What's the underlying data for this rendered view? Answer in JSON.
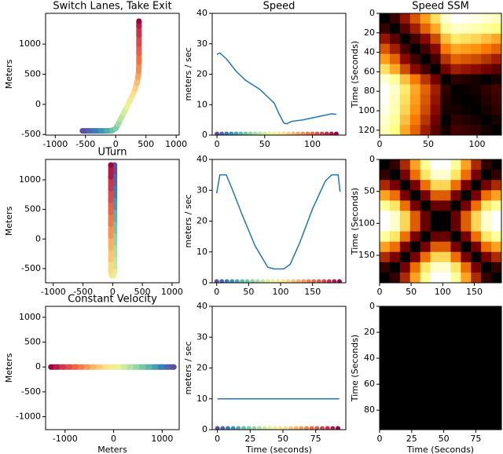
{
  "chart_data": [
    {
      "type": "scatter",
      "title": "Switch Lanes, Take Exit",
      "ylabel": "Meters",
      "x": [
        -550,
        -450,
        -350,
        -250,
        -150,
        -60,
        0,
        40,
        80,
        130,
        180,
        230,
        280,
        320,
        350,
        370,
        380,
        385,
        385,
        385,
        385,
        385,
        385
      ],
      "y": [
        -440,
        -440,
        -440,
        -440,
        -440,
        -435,
        -400,
        -330,
        -250,
        -150,
        -50,
        50,
        150,
        250,
        350,
        450,
        550,
        700,
        850,
        1000,
        1150,
        1300,
        1380
      ],
      "colormap": [
        "#5e4fa2",
        "#3288bd",
        "#66c2a5",
        "#abdda4",
        "#e6f598",
        "#fee08b",
        "#fdae61",
        "#f46d43",
        "#d53e4f",
        "#9e0142"
      ],
      "xlim": [
        -1160,
        1050
      ],
      "ylim": [
        -510,
        1510
      ],
      "xticks": [
        -1000,
        -500,
        0,
        500,
        1000
      ],
      "yticks": [
        -500,
        0,
        500,
        1000
      ]
    },
    {
      "type": "line",
      "title": "Speed",
      "ylabel": "meters / sec",
      "color": "#1f77b4",
      "x": [
        0,
        3,
        10,
        20,
        30,
        45,
        55,
        60,
        65,
        70,
        73,
        78,
        90,
        105,
        120,
        125
      ],
      "values": [
        26.5,
        27,
        25,
        21,
        18,
        15,
        12,
        10.5,
        7,
        4,
        3.7,
        4.5,
        5,
        6,
        7,
        6.8
      ],
      "markers": {
        "x": [
          0,
          5,
          10,
          15,
          20,
          25,
          30,
          35,
          40,
          45,
          50,
          55,
          60,
          65,
          70,
          75,
          80,
          85,
          90,
          95,
          100,
          105,
          110,
          115,
          120,
          125
        ],
        "y": [
          0.4,
          0.4,
          0.4,
          0.4,
          0.4,
          0.4,
          0.4,
          0.4,
          0.4,
          0.4,
          0.4,
          0.4,
          0.4,
          0.4,
          0.4,
          0.4,
          0.4,
          0.4,
          0.4,
          0.4,
          0.4,
          0.4,
          0.4,
          0.4,
          0.4,
          0.4
        ]
      },
      "colormap": [
        "#5e4fa2",
        "#3288bd",
        "#66c2a5",
        "#abdda4",
        "#e6f598",
        "#fee08b",
        "#fdae61",
        "#f46d43",
        "#d53e4f",
        "#9e0142"
      ],
      "xlim": [
        -5,
        135
      ],
      "ylim": [
        0,
        40
      ],
      "xticks": [
        0,
        50,
        100
      ],
      "yticks": [
        0,
        10,
        20,
        30,
        40
      ]
    },
    {
      "type": "heatmap",
      "title": "Speed SSM",
      "ylabel": "Time (Seconds)",
      "y_inverted": true,
      "z": [
        [
          0,
          2.5,
          6.5,
          9.5,
          12.5,
          15.5,
          20.5,
          22.5,
          22,
          21.5,
          20.5,
          19.5
        ],
        [
          2.5,
          0,
          4,
          7,
          10,
          13,
          18,
          20,
          19.5,
          19,
          18,
          17
        ],
        [
          6.5,
          4,
          0,
          3,
          6,
          9,
          14,
          16,
          15.5,
          15,
          14,
          13
        ],
        [
          9.5,
          7,
          3,
          0,
          3,
          6,
          11,
          13,
          12.5,
          12,
          11,
          10
        ],
        [
          12.5,
          10,
          6,
          3,
          0,
          3,
          8,
          10,
          9.5,
          9,
          8,
          7
        ],
        [
          15.5,
          13,
          9,
          6,
          3,
          0,
          5,
          7,
          6.5,
          6,
          5,
          4
        ],
        [
          20.5,
          18,
          14,
          11,
          8,
          5,
          0,
          2,
          1.5,
          1,
          0,
          1
        ],
        [
          22.5,
          20,
          16,
          13,
          10,
          7,
          2,
          0,
          0.5,
          1,
          2,
          3
        ],
        [
          22,
          19.5,
          15.5,
          12.5,
          9.5,
          6.5,
          1.5,
          0.5,
          0,
          0.5,
          1.5,
          2.5
        ],
        [
          21.5,
          19,
          15,
          12,
          9,
          6,
          1,
          1,
          0.5,
          0,
          1,
          2
        ],
        [
          20.5,
          18,
          14,
          11,
          8,
          5,
          0,
          2,
          1.5,
          1,
          0,
          1
        ],
        [
          19.5,
          17,
          13,
          10,
          7,
          4,
          1,
          3,
          2.5,
          2,
          1,
          0
        ]
      ],
      "clim": [
        0,
        22.5
      ],
      "colormap": [
        "#000000",
        "#800000",
        "#ff8000",
        "#ffff80",
        "#ffffff"
      ],
      "xlim": [
        0,
        125
      ],
      "ylim": [
        0,
        125
      ],
      "xticks": [
        0,
        50,
        100
      ],
      "yticks": [
        0,
        20,
        40,
        60,
        80,
        100,
        120
      ]
    },
    {
      "type": "scatter",
      "title": "UTurn",
      "ylabel": "Meters",
      "x": [
        30,
        30,
        30,
        30,
        30,
        30,
        30,
        30,
        30,
        30,
        15,
        -15,
        -30,
        -30,
        -30,
        -30,
        -30,
        -30,
        -30,
        -30,
        -30,
        -30
      ],
      "y": [
        1250,
        1050,
        850,
        650,
        450,
        250,
        50,
        -150,
        -350,
        -550,
        -620,
        -620,
        -550,
        -350,
        -150,
        50,
        250,
        450,
        650,
        850,
        1050,
        1250
      ],
      "colormap": [
        "#5e4fa2",
        "#3288bd",
        "#66c2a5",
        "#abdda4",
        "#e6f598",
        "#fee08b",
        "#fdae61",
        "#f46d43",
        "#d53e4f",
        "#9e0142"
      ],
      "xlim": [
        -1130,
        1120
      ],
      "ylim": [
        -740,
        1345
      ],
      "xticks": [
        -1000,
        -500,
        0,
        500,
        1000
      ],
      "yticks": [
        -500,
        0,
        500,
        1000
      ]
    },
    {
      "type": "line",
      "ylabel": "meters / sec",
      "color": "#1f77b4",
      "x": [
        0,
        5,
        15,
        25,
        40,
        60,
        80,
        90,
        105,
        115,
        130,
        150,
        170,
        180,
        190,
        193
      ],
      "values": [
        29,
        35,
        35,
        30,
        22,
        12,
        5,
        4.5,
        4.5,
        6,
        13,
        24,
        33,
        35,
        35,
        29.5
      ],
      "markers": {
        "x": [
          0,
          8,
          16,
          24,
          32,
          40,
          48,
          56,
          64,
          72,
          80,
          88,
          96,
          104,
          112,
          120,
          128,
          136,
          144,
          152,
          160,
          168,
          176,
          184,
          192
        ],
        "y": [
          0.4,
          0.4,
          0.4,
          0.4,
          0.4,
          0.4,
          0.4,
          0.4,
          0.4,
          0.4,
          0.4,
          0.4,
          0.4,
          0.4,
          0.4,
          0.4,
          0.4,
          0.4,
          0.4,
          0.4,
          0.4,
          0.4,
          0.4,
          0.4,
          0.4
        ]
      },
      "colormap": [
        "#5e4fa2",
        "#3288bd",
        "#66c2a5",
        "#abdda4",
        "#e6f598",
        "#fee08b",
        "#fdae61",
        "#f46d43",
        "#d53e4f",
        "#9e0142"
      ],
      "xlim": [
        -7,
        202
      ],
      "ylim": [
        0,
        40
      ],
      "xticks": [
        0,
        50,
        100,
        150
      ],
      "yticks": [
        0,
        10,
        20,
        30,
        40
      ]
    },
    {
      "type": "heatmap",
      "ylabel": "Time (Seconds)",
      "y_inverted": true,
      "z": [
        [
          0,
          3,
          10,
          17,
          24,
          30,
          30,
          24,
          17,
          10,
          3,
          0
        ],
        [
          3,
          0,
          7,
          14,
          21,
          27,
          27,
          21,
          14,
          7,
          0,
          3
        ],
        [
          10,
          7,
          0,
          7,
          14,
          20,
          20,
          14,
          7,
          0,
          7,
          10
        ],
        [
          17,
          14,
          7,
          0,
          7,
          13,
          13,
          7,
          0,
          7,
          14,
          17
        ],
        [
          24,
          21,
          14,
          7,
          0,
          6,
          6,
          0,
          7,
          14,
          21,
          24
        ],
        [
          30,
          27,
          20,
          13,
          6,
          0,
          0,
          6,
          13,
          20,
          27,
          30
        ],
        [
          30,
          27,
          20,
          13,
          6,
          0,
          0,
          6,
          13,
          20,
          27,
          30
        ],
        [
          24,
          21,
          14,
          7,
          0,
          6,
          6,
          0,
          7,
          14,
          21,
          24
        ],
        [
          17,
          14,
          7,
          0,
          7,
          13,
          13,
          7,
          0,
          7,
          14,
          17
        ],
        [
          10,
          7,
          0,
          7,
          14,
          20,
          20,
          14,
          7,
          0,
          7,
          10
        ],
        [
          3,
          0,
          7,
          14,
          21,
          27,
          27,
          21,
          14,
          7,
          0,
          3
        ],
        [
          0,
          3,
          10,
          17,
          24,
          30,
          30,
          24,
          17,
          10,
          3,
          0
        ]
      ],
      "clim": [
        0,
        30
      ],
      "colormap": [
        "#000000",
        "#800000",
        "#ff8000",
        "#ffff80",
        "#ffffff"
      ],
      "xlim": [
        0,
        193
      ],
      "ylim": [
        0,
        193
      ],
      "xticks": [
        0,
        50,
        100,
        150
      ],
      "yticks": [
        0,
        50,
        100,
        150
      ]
    },
    {
      "type": "scatter",
      "title": "Constant Velocity",
      "ylabel": "Meters",
      "xlabel": "Meters",
      "x": [
        1240,
        1113,
        987,
        860,
        734,
        607,
        481,
        354,
        228,
        101,
        -25,
        -152,
        -278,
        -405,
        -531,
        -658,
        -784,
        -911,
        -1037,
        -1164,
        -1290
      ],
      "y": [
        0,
        0,
        0,
        0,
        0,
        0,
        0,
        0,
        0,
        0,
        0,
        0,
        0,
        0,
        0,
        0,
        0,
        0,
        0,
        0,
        0
      ],
      "colormap": [
        "#5e4fa2",
        "#3288bd",
        "#66c2a5",
        "#abdda4",
        "#e6f598",
        "#fee08b",
        "#fdae61",
        "#f46d43",
        "#d53e4f",
        "#9e0142"
      ],
      "xlim": [
        -1400,
        1350
      ],
      "ylim": [
        -1260,
        1220
      ],
      "xticks": [
        -1000,
        0,
        1000
      ],
      "yticks": [
        -1000,
        -500,
        0,
        500,
        1000
      ]
    },
    {
      "type": "line",
      "ylabel": "meters / sec",
      "xlabel": "Time (seconds)",
      "color": "#1f77b4",
      "x": [
        0,
        93
      ],
      "values": [
        10,
        10
      ],
      "markers": {
        "x": [
          0,
          4,
          8,
          12,
          16,
          20,
          24,
          28,
          32,
          36,
          40,
          44,
          48,
          52,
          56,
          60,
          64,
          68,
          72,
          76,
          80,
          84,
          88,
          92
        ],
        "y": [
          0.4,
          0.4,
          0.4,
          0.4,
          0.4,
          0.4,
          0.4,
          0.4,
          0.4,
          0.4,
          0.4,
          0.4,
          0.4,
          0.4,
          0.4,
          0.4,
          0.4,
          0.4,
          0.4,
          0.4,
          0.4,
          0.4,
          0.4,
          0.4
        ]
      },
      "colormap": [
        "#5e4fa2",
        "#3288bd",
        "#66c2a5",
        "#abdda4",
        "#e6f598",
        "#fee08b",
        "#fdae61",
        "#f46d43",
        "#d53e4f",
        "#9e0142"
      ],
      "xlim": [
        -4,
        98
      ],
      "ylim": [
        0,
        40
      ],
      "xticks": [
        0,
        25,
        50,
        75
      ],
      "yticks": [
        0,
        10,
        20,
        30,
        40
      ]
    },
    {
      "type": "heatmap",
      "ylabel": "Time (Seconds)",
      "xlabel": "Time (Seconds)",
      "y_inverted": true,
      "z": [
        [
          0,
          0,
          0,
          0,
          0,
          0
        ],
        [
          0,
          0,
          0,
          0,
          0,
          0
        ],
        [
          0,
          0,
          0,
          0,
          0,
          0
        ],
        [
          0,
          0,
          0,
          0,
          0,
          0
        ],
        [
          0,
          0,
          0,
          0,
          0,
          0
        ],
        [
          0,
          0,
          0,
          0,
          0,
          0
        ]
      ],
      "clim": [
        0,
        30
      ],
      "colormap": [
        "#000000",
        "#800000",
        "#ff8000",
        "#ffff80",
        "#ffffff"
      ],
      "xlim": [
        0,
        95
      ],
      "ylim": [
        0,
        95
      ],
      "xticks": [
        0,
        25,
        50,
        75
      ],
      "yticks": [
        0,
        20,
        40,
        60,
        80
      ]
    }
  ]
}
